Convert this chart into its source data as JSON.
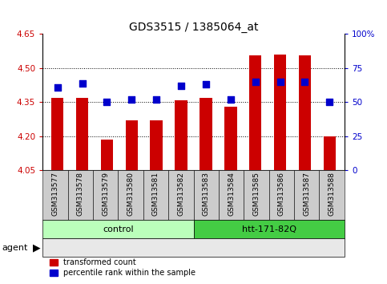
{
  "title": "GDS3515 / 1385064_at",
  "samples": [
    "GSM313577",
    "GSM313578",
    "GSM313579",
    "GSM313580",
    "GSM313581",
    "GSM313582",
    "GSM313583",
    "GSM313584",
    "GSM313585",
    "GSM313586",
    "GSM313587",
    "GSM313588"
  ],
  "red_values": [
    4.37,
    4.37,
    4.185,
    4.27,
    4.27,
    4.36,
    4.37,
    4.33,
    4.555,
    4.56,
    4.555,
    4.2
  ],
  "blue_values": [
    61,
    64,
    50,
    52,
    52,
    62,
    63,
    52,
    65,
    65,
    65,
    50
  ],
  "baseline": 4.05,
  "ylim_left": [
    4.05,
    4.65
  ],
  "ylim_right": [
    0,
    100
  ],
  "yticks_left": [
    4.05,
    4.2,
    4.35,
    4.5,
    4.65
  ],
  "yticks_right": [
    0,
    25,
    50,
    75,
    100
  ],
  "ytick_labels_right": [
    "0",
    "25",
    "50",
    "75",
    "100%"
  ],
  "hlines": [
    4.2,
    4.35,
    4.5
  ],
  "bar_color": "#cc0000",
  "dot_color": "#0000cc",
  "control_label": "control",
  "treatment_label": "htt-171-82Q",
  "agent_label": "agent",
  "legend_red": "transformed count",
  "legend_blue": "percentile rank within the sample",
  "control_bg": "#bbffbb",
  "treatment_bg": "#44cc44",
  "xticklabel_bg": "#cccccc",
  "bar_width": 0.5,
  "dot_size": 28,
  "title_fontsize": 10,
  "tick_fontsize": 7.5,
  "label_fontsize": 7.5
}
